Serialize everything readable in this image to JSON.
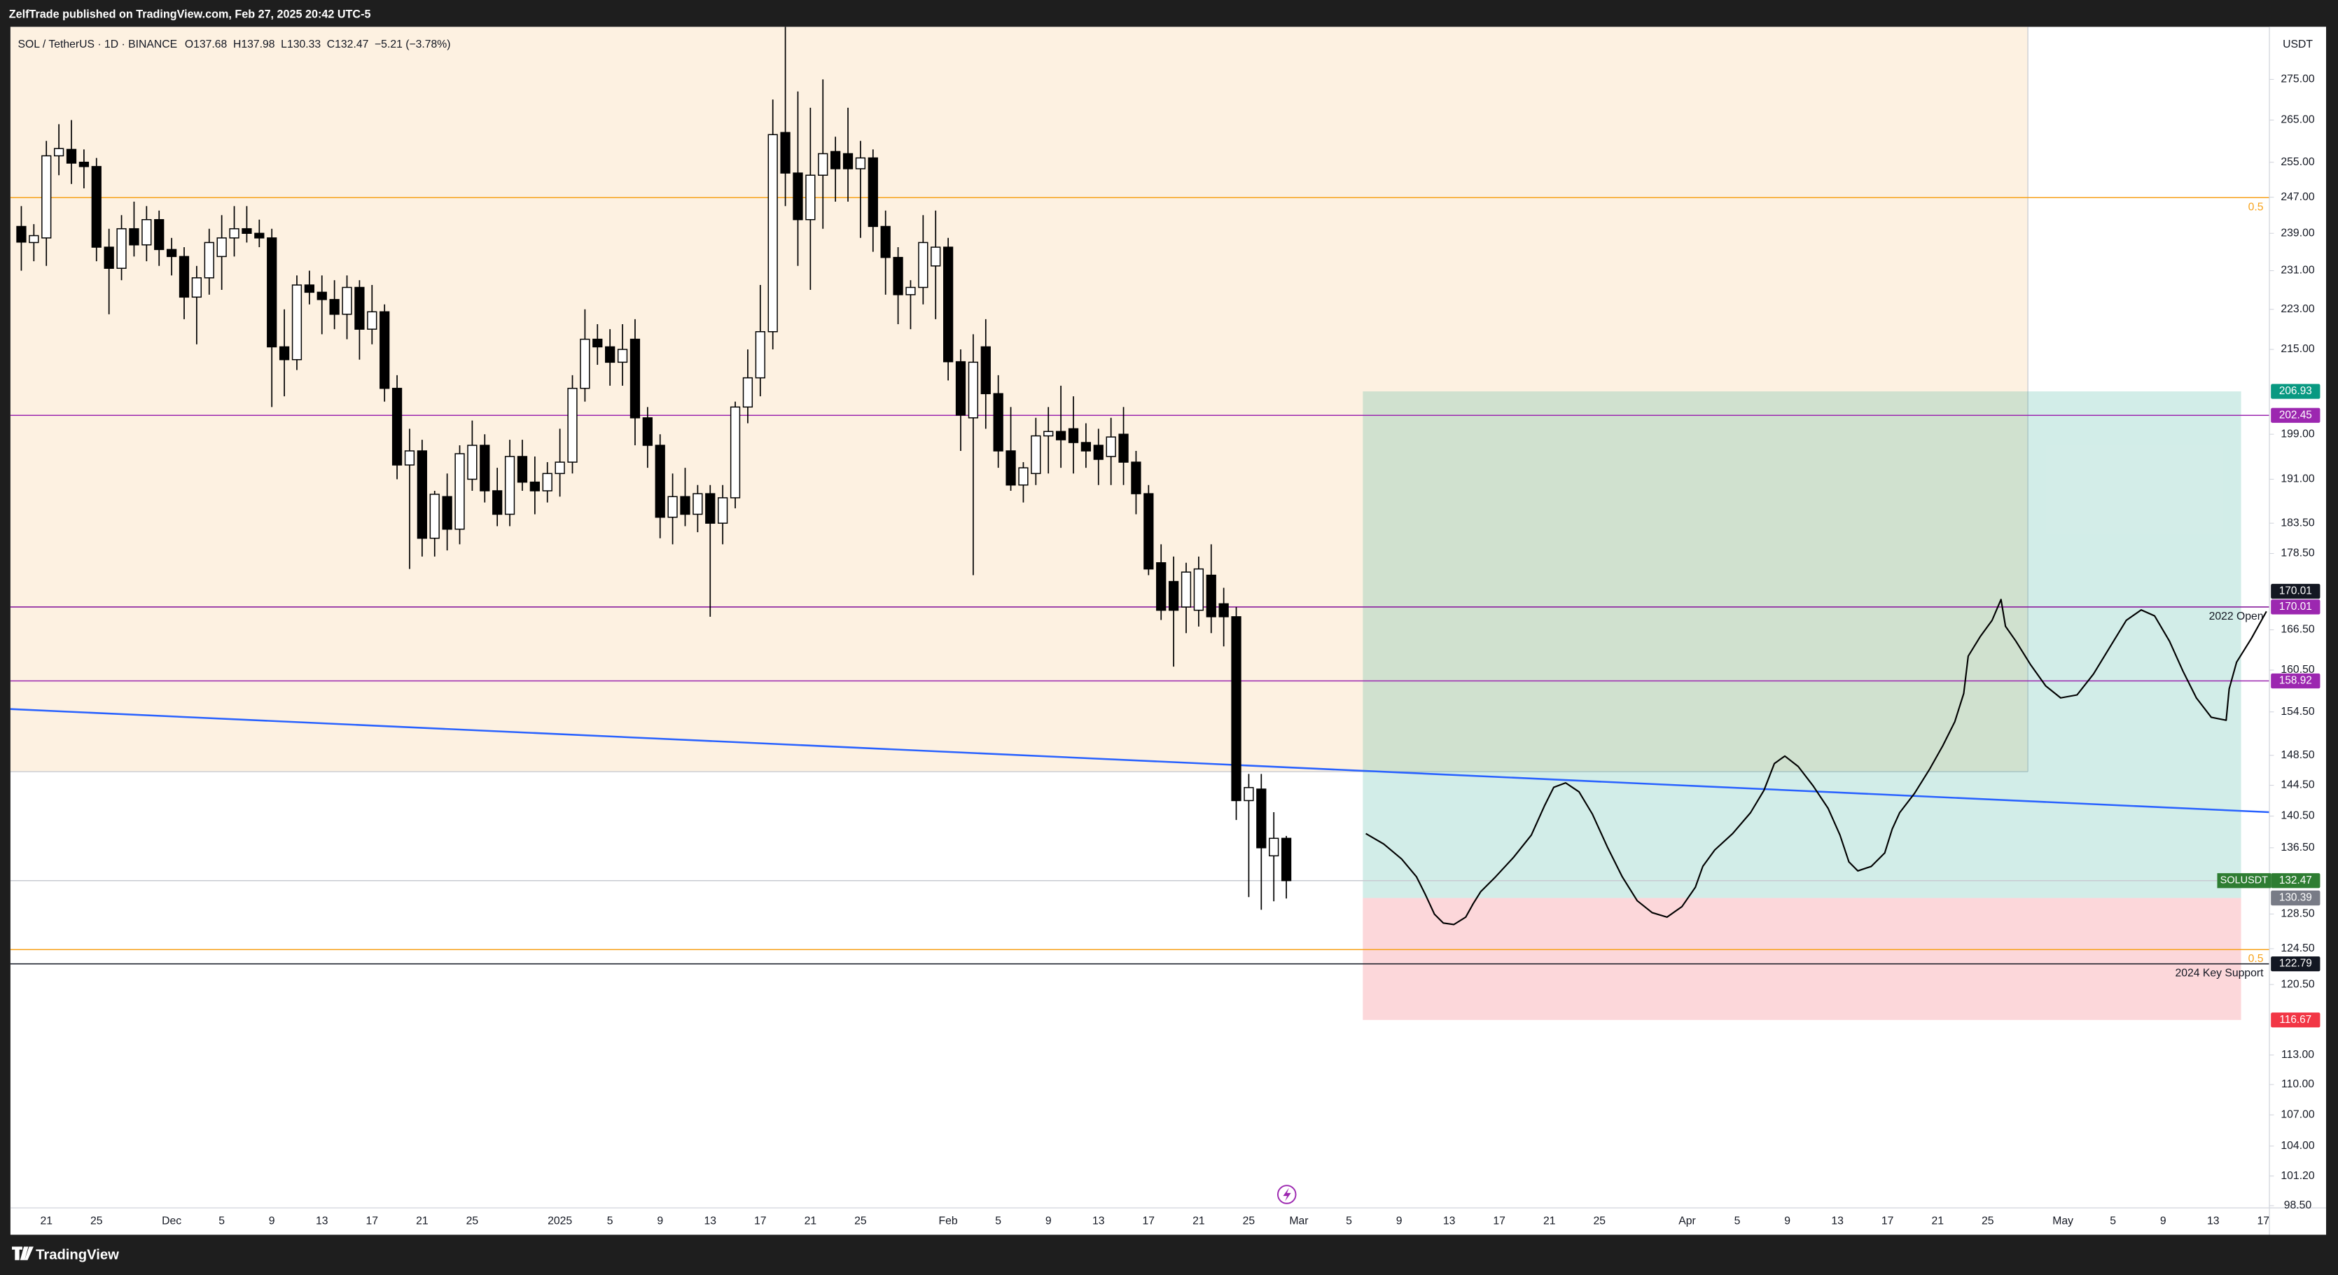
{
  "chart_data": {
    "type": "candlestick",
    "header": "ZelfTrade published on TradingView.com, Feb 27, 2025 20:42 UTC-5",
    "legend": {
      "symbol": "SOL / TetherUS · 1D · BINANCE",
      "keys": [
        "O",
        "H",
        "L",
        "C"
      ],
      "change": "−5.21 (−3.78%)"
    },
    "axis_unit": "USDT",
    "brand": "TradingView",
    "log_scale": true,
    "grid": false,
    "up_color": "#ffffff",
    "down_color": "#000000",
    "ylim": [
      98.3,
      288.5
    ],
    "yticks": [
      {
        "value": 275,
        "label": "275.00"
      },
      {
        "value": 265,
        "label": "265.00"
      },
      {
        "value": 255,
        "label": "255.00"
      },
      {
        "value": 247,
        "label": "247.00"
      },
      {
        "value": 239,
        "label": "239.00"
      },
      {
        "value": 231,
        "label": "231.00"
      },
      {
        "value": 223,
        "label": "223.00"
      },
      {
        "value": 215,
        "label": "215.00"
      },
      {
        "value": 199,
        "label": "199.00"
      },
      {
        "value": 191,
        "label": "191.00"
      },
      {
        "value": 183.5,
        "label": "183.50"
      },
      {
        "value": 178.5,
        "label": "178.50"
      },
      {
        "value": 166.5,
        "label": "166.50"
      },
      {
        "value": 160.5,
        "label": "160.50"
      },
      {
        "value": 154.5,
        "label": "154.50"
      },
      {
        "value": 148.5,
        "label": "148.50"
      },
      {
        "value": 144.5,
        "label": "144.50"
      },
      {
        "value": 140.5,
        "label": "140.50"
      },
      {
        "value": 136.5,
        "label": "136.50"
      },
      {
        "value": 128.5,
        "label": "128.50"
      },
      {
        "value": 124.5,
        "label": "124.50"
      },
      {
        "value": 120.5,
        "label": "120.50"
      },
      {
        "value": 113,
        "label": "113.00"
      },
      {
        "value": 110,
        "label": "110.00"
      },
      {
        "value": 107,
        "label": "107.00"
      },
      {
        "value": 104,
        "label": "104.00"
      },
      {
        "value": 101.2,
        "label": "101.20"
      },
      {
        "value": 98.5,
        "label": "98.50"
      }
    ],
    "categories": [
      null,
      null,
      "21",
      null,
      null,
      null,
      "25",
      null,
      null,
      null,
      null,
      null,
      "Dec",
      null,
      null,
      null,
      "5",
      null,
      null,
      null,
      "9",
      null,
      null,
      null,
      "13",
      null,
      null,
      null,
      "17",
      null,
      null,
      null,
      "21",
      null,
      null,
      null,
      "25",
      null,
      null,
      null,
      null,
      null,
      null,
      "2025",
      null,
      null,
      null,
      "5",
      null,
      null,
      null,
      "9",
      null,
      null,
      null,
      "13",
      null,
      null,
      null,
      "17",
      null,
      null,
      null,
      "21",
      null,
      null,
      null,
      "25",
      null,
      null,
      null,
      null,
      null,
      null,
      "Feb",
      null,
      null,
      null,
      "5",
      null,
      null,
      null,
      "9",
      null,
      null,
      null,
      "13",
      null,
      null,
      null,
      "17",
      null,
      null,
      null,
      "21",
      null,
      null,
      null,
      "25",
      null,
      null,
      null,
      "Mar",
      null,
      null,
      null,
      "5",
      null,
      null,
      null,
      "9",
      null,
      null,
      null,
      "13",
      null,
      null,
      null,
      "17",
      null,
      null,
      null,
      "21",
      null,
      null,
      null,
      "25",
      null,
      null,
      null,
      null,
      null,
      null,
      "Apr",
      null,
      null,
      null,
      "5",
      null,
      null,
      null,
      "9",
      null,
      null,
      null,
      "13",
      null,
      null,
      null,
      "17",
      null,
      null,
      null,
      "21",
      null,
      null,
      null,
      "25",
      null,
      null,
      null,
      null,
      null,
      "May",
      null,
      null,
      null,
      "5",
      null,
      null,
      null,
      "9",
      null,
      null,
      null,
      "13",
      null,
      null,
      null,
      "17"
    ],
    "open": [
      240.5,
      237,
      238,
      256.5,
      258,
      255,
      254,
      236,
      231.5,
      240,
      236.5,
      242,
      235.5,
      234,
      225.5,
      229.5,
      234,
      238,
      240,
      239,
      238,
      215.5,
      213,
      228,
      226.5,
      225,
      222,
      227.5,
      219,
      222.5,
      207.5,
      193.5,
      196,
      181,
      188,
      182.5,
      191,
      197,
      189,
      185,
      195,
      190.5,
      189,
      192,
      194,
      207.5,
      217,
      215.5,
      212.5,
      217,
      202,
      197,
      184.5,
      188,
      185,
      188.5,
      183.5,
      187.8,
      204,
      209.5,
      218.5,
      262,
      252.5,
      242,
      252,
      257.5,
      257,
      253.5,
      256,
      240.5,
      233.8,
      226,
      227.5,
      232,
      236,
      212.6,
      202,
      215.5,
      206.5,
      196,
      190,
      192,
      198.7,
      199.5,
      200,
      197.5,
      197,
      195,
      199,
      194,
      188.5,
      177,
      174,
      170,
      169.5,
      175,
      170.5,
      168.5,
      142.5,
      144,
      135.5,
      137.68,
      null,
      null,
      null,
      null,
      null,
      null,
      null,
      null,
      null,
      null,
      null,
      null,
      null,
      null,
      null,
      null,
      null,
      null,
      null,
      null,
      null,
      null,
      null,
      null,
      null,
      null,
      null,
      null,
      null,
      null,
      null,
      null,
      null,
      null,
      null,
      null,
      null,
      null,
      null,
      null,
      null,
      null,
      null,
      null,
      null,
      null,
      null,
      null,
      null,
      null,
      null,
      null,
      null,
      null,
      null,
      null,
      null,
      null,
      null,
      null,
      null,
      null,
      null,
      null,
      null,
      null,
      null,
      null,
      null,
      null,
      null,
      null,
      null,
      null,
      null,
      null,
      null,
      null
    ],
    "high": [
      245,
      241,
      260,
      264,
      265,
      258,
      256,
      240,
      243,
      246,
      245,
      244,
      238,
      236,
      232,
      240,
      243,
      245,
      245,
      242,
      240,
      223,
      230,
      231,
      230,
      229,
      230,
      229,
      228,
      224,
      210,
      200,
      198,
      189,
      192,
      197,
      201.5,
      199,
      193,
      198,
      198,
      195,
      194,
      200,
      210,
      223,
      220,
      219,
      220,
      221,
      204,
      199,
      192,
      193,
      190,
      190,
      190,
      205,
      215,
      228,
      270,
      294,
      272,
      268,
      275,
      261,
      268,
      260,
      258,
      244,
      236,
      229,
      243,
      244,
      238,
      215,
      218,
      221,
      210,
      204,
      194,
      202,
      204,
      208,
      206,
      201,
      200,
      202,
      204,
      196,
      190,
      180,
      178,
      177,
      178,
      180,
      173,
      170,
      146,
      146,
      141,
      137.98,
      null,
      null,
      null,
      null,
      null,
      null,
      null,
      null,
      null,
      null,
      null,
      null,
      null,
      null,
      null,
      null,
      null,
      null,
      null,
      null,
      null,
      null,
      null,
      null,
      null,
      null,
      null,
      null,
      null,
      null,
      null,
      null,
      null,
      null,
      null,
      null,
      null,
      null,
      null,
      null,
      null,
      null,
      null,
      null,
      null,
      null,
      null,
      null,
      null,
      null,
      null,
      null,
      null,
      null,
      null,
      null,
      null,
      null,
      null,
      null,
      null,
      null,
      null,
      null,
      null,
      null,
      null,
      null,
      null,
      null,
      null,
      null,
      null,
      null,
      null,
      null,
      null,
      null
    ],
    "low": [
      231,
      233,
      232,
      252,
      250,
      249,
      233,
      222,
      229,
      234,
      233,
      232,
      230,
      221,
      216,
      226,
      227,
      234,
      237,
      236,
      204,
      206,
      211,
      224,
      218,
      219,
      217,
      213,
      216,
      205,
      191,
      176,
      178,
      178,
      179,
      180,
      189,
      187,
      183,
      183,
      189,
      185,
      187,
      188,
      192,
      205,
      212,
      208,
      208,
      197,
      193,
      181,
      180,
      183,
      182,
      168.5,
      180,
      186,
      201,
      206,
      215,
      245,
      232,
      227,
      240,
      246,
      246,
      238,
      235,
      226,
      220,
      219,
      224,
      221,
      209,
      196,
      175,
      200,
      193,
      189,
      187,
      190,
      192,
      193,
      192,
      193,
      190,
      190,
      190,
      185,
      175,
      168,
      161,
      166,
      167,
      166,
      164,
      140,
      130.5,
      129,
      130,
      130.33,
      null,
      null,
      null,
      null,
      null,
      null,
      null,
      null,
      null,
      null,
      null,
      null,
      null,
      null,
      null,
      null,
      null,
      null,
      null,
      null,
      null,
      null,
      null,
      null,
      null,
      null,
      null,
      null,
      null,
      null,
      null,
      null,
      null,
      null,
      null,
      null,
      null,
      null,
      null,
      null,
      null,
      null,
      null,
      null,
      null,
      null,
      null,
      null,
      null,
      null,
      null,
      null,
      null,
      null,
      null,
      null,
      null,
      null,
      null,
      null,
      null,
      null,
      null,
      null,
      null,
      null,
      null,
      null,
      null,
      null,
      null,
      null,
      null,
      null,
      null,
      null,
      null,
      null
    ],
    "close": [
      237.1,
      238.5,
      256.5,
      258.2,
      254.8,
      254,
      236,
      231.5,
      240,
      236.5,
      242,
      235.5,
      234,
      225.5,
      229.5,
      237,
      238,
      240,
      239,
      238,
      215.5,
      213,
      228,
      226.5,
      225,
      222,
      227.5,
      219,
      222.5,
      207.5,
      193.5,
      196,
      181,
      188.4,
      182.5,
      195.5,
      197,
      189,
      185,
      195,
      190.5,
      189,
      192,
      194,
      207.5,
      217,
      215.5,
      212.5,
      215,
      202,
      197,
      184.5,
      188,
      185,
      188.5,
      183.5,
      187.8,
      204,
      209.5,
      218.5,
      261.5,
      252.5,
      242,
      252,
      257,
      253.5,
      253.5,
      256,
      240.5,
      233.8,
      226,
      227.5,
      237,
      236,
      212.6,
      202.5,
      212.5,
      206.5,
      196,
      190,
      193,
      198.7,
      199.5,
      198,
      197.5,
      196,
      194.5,
      198.5,
      194,
      188.5,
      176,
      169.5,
      169.5,
      175.5,
      176,
      168.5,
      168.5,
      142.5,
      144.2,
      136.5,
      137.68,
      132.47,
      null,
      null,
      null,
      null,
      null,
      null,
      null,
      null,
      null,
      null,
      null,
      null,
      null,
      null,
      null,
      null,
      null,
      null,
      null,
      null,
      null,
      null,
      null,
      null,
      null,
      null,
      null,
      null,
      null,
      null,
      null,
      null,
      null,
      null,
      null,
      null,
      null,
      null,
      null,
      null,
      null,
      null,
      null,
      null,
      null,
      null,
      null,
      null,
      null,
      null,
      null,
      null,
      null,
      null,
      null,
      null,
      null,
      null,
      null,
      null,
      null,
      null,
      null,
      null,
      null,
      null,
      null,
      null,
      null,
      null,
      null,
      null,
      null,
      null,
      null,
      null,
      null,
      null
    ],
    "zone": {
      "bottom": 146.3,
      "color": "#fdf1e1"
    },
    "levels": [
      {
        "value": 246.9,
        "color": "#f7a21b",
        "label": "0.5"
      },
      {
        "value": 202.45,
        "color": "#9c27b0",
        "tag": "#9c27b0"
      },
      {
        "value": 170.01,
        "color": "#131722",
        "label": "2022 Open",
        "tag": "#131722"
      },
      {
        "value": 170.01,
        "color": "#9c27b0",
        "tag": "#9c27b0"
      },
      {
        "value": 158.92,
        "color": "#9c27b0",
        "tag": "#9c27b0"
      },
      {
        "value": 132.47,
        "color": "#c8cbd2",
        "tag": "#2e7d32",
        "name": "SOLUSDT"
      },
      {
        "value": 124.4,
        "color": "#f7a21b",
        "label": "0.5"
      },
      {
        "value": 122.79,
        "color": "#131722",
        "label": "2024 Key Support",
        "tag": "#131722"
      }
    ],
    "position": {
      "target": 206.93,
      "entry": 130.39,
      "stop": 116.67,
      "target_color": "#089981",
      "entry_color": "#787b86",
      "stop_color": "#f23645"
    },
    "trendline": {
      "start": 154.9,
      "end": 141.0,
      "color": "#2962ff"
    }
  }
}
